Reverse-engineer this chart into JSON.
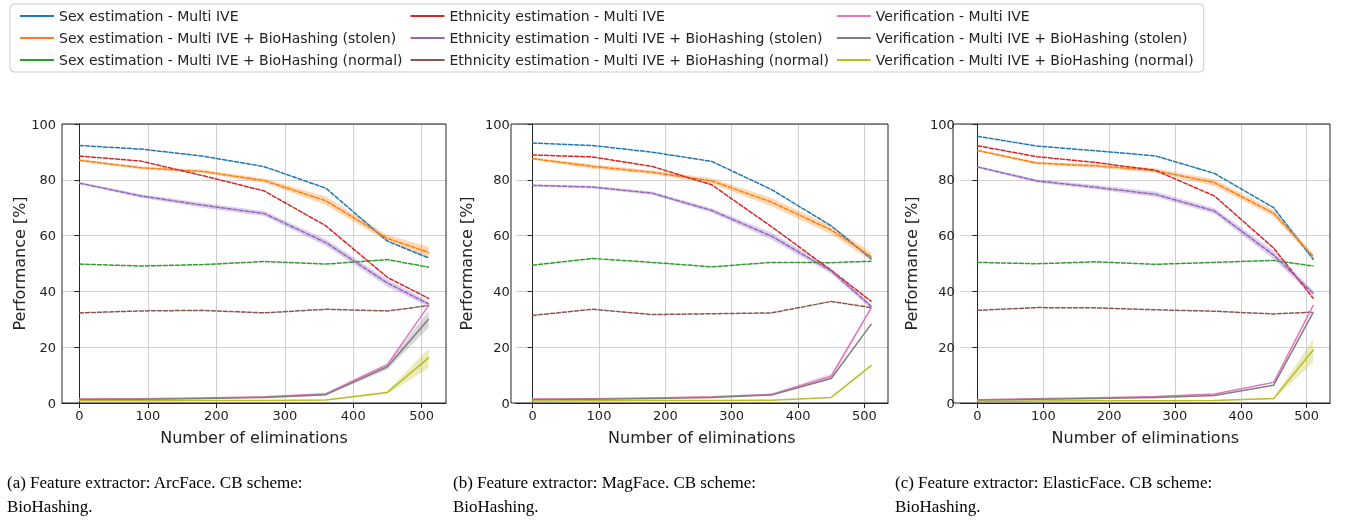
{
  "chart_data": [
    {
      "type": "line",
      "xlabel": "Number of eliminations",
      "ylabel": "Performance [%]",
      "annotations": [
        "(a) Feature extractor: ArcFace. CB scheme: BioHashing."
      ],
      "x": [
        0,
        90,
        180,
        270,
        360,
        450,
        510
      ],
      "xlim": [
        -25.5,
        535.5
      ],
      "xticks": [
        0,
        100,
        200,
        300,
        400,
        500
      ],
      "ylim": [
        0,
        100
      ],
      "yticks": [
        0,
        20,
        40,
        60,
        80,
        100
      ],
      "grid": true,
      "legend": "top",
      "series": [
        {
          "name": "Sex estimation - Multi IVE",
          "color": "#1f77b4",
          "line_style": "dashed",
          "values": [
            92.3,
            91,
            88.5,
            84.7,
            77,
            58,
            52
          ]
        },
        {
          "name": "Sex estimation - Multi IVE + BioHashing (stolen)",
          "color": "#ff7f0e",
          "line_style": "dashed",
          "values": [
            87,
            84.3,
            83,
            79.7,
            72.5,
            59,
            54
          ],
          "lower": [
            86.5,
            83.8,
            82.4,
            78.9,
            71,
            57.8,
            52
          ],
          "upper": [
            87.5,
            84.8,
            83.6,
            80.5,
            74,
            60.2,
            56
          ]
        },
        {
          "name": "Sex estimation - Multi IVE + BioHashing (normal)",
          "color": "#2ca02c",
          "line_style": "dashed",
          "values": [
            49.8,
            49.1,
            49.6,
            50.7,
            49.8,
            51.4,
            48.7
          ]
        },
        {
          "name": "Ethnicity estimation - Multi IVE",
          "color": "#d62728",
          "line_style": "dashed",
          "values": [
            88.5,
            86.7,
            81.5,
            76,
            63.5,
            45,
            37.5
          ]
        },
        {
          "name": "Ethnicity estimation - Multi IVE + BioHashing (stolen)",
          "color": "#9467bd",
          "line_style": "dashed",
          "values": [
            78.8,
            74.2,
            70.9,
            67.9,
            57.5,
            43,
            35.5
          ],
          "lower": [
            78.4,
            73.6,
            70,
            67,
            56.3,
            41.7,
            34.5
          ],
          "upper": [
            79.2,
            74.8,
            71.8,
            68.8,
            58.7,
            44.3,
            36.5
          ]
        },
        {
          "name": "Ethnicity estimation - Multi IVE + BioHashing (normal)",
          "color": "#8c564b",
          "line_style": "dashed",
          "values": [
            32.3,
            33,
            33.2,
            32.3,
            33.6,
            33,
            34.9
          ]
        },
        {
          "name": "Verification - Multi IVE",
          "color": "#e377c2",
          "line_style": "solid",
          "values": [
            1.5,
            1.5,
            1.8,
            2.2,
            3.3,
            13.8,
            34.9
          ]
        },
        {
          "name": "Verification - Multi IVE + BioHashing (stolen)",
          "color": "#7f7f7f",
          "line_style": "solid",
          "values": [
            1.2,
            1.3,
            1.6,
            2,
            3,
            13,
            30
          ],
          "lower": [
            1,
            1.1,
            1.4,
            1.8,
            2.7,
            12,
            27
          ],
          "upper": [
            1.4,
            1.5,
            1.8,
            2.2,
            3.3,
            14,
            33
          ]
        },
        {
          "name": "Verification - Multi IVE + BioHashing (normal)",
          "color": "#bcbd22",
          "line_style": "solid",
          "values": [
            0.8,
            0.8,
            0.9,
            0.9,
            1.1,
            3.8,
            16.2
          ],
          "lower": [
            0.7,
            0.7,
            0.8,
            0.8,
            1,
            3.3,
            12.5
          ],
          "upper": [
            0.9,
            0.9,
            1,
            1,
            1.2,
            4.3,
            19.5
          ]
        }
      ]
    },
    {
      "type": "line",
      "xlabel": "Number of eliminations",
      "ylabel": "Performance [%]",
      "annotations": [
        "(b) Feature extractor: MagFace. CB scheme: BioHashing."
      ],
      "x": [
        0,
        90,
        180,
        270,
        360,
        450,
        510
      ],
      "xlim": [
        -25.5,
        535.5
      ],
      "xticks": [
        0,
        100,
        200,
        300,
        400,
        500
      ],
      "ylim": [
        0,
        100
      ],
      "yticks": [
        0,
        20,
        40,
        60,
        80,
        100
      ],
      "grid": true,
      "series": [
        {
          "color": "#1f77b4",
          "line_style": "dashed",
          "values": [
            93.2,
            92.3,
            89.9,
            86.6,
            76.5,
            63.5,
            51.7
          ]
        },
        {
          "color": "#ff7f0e",
          "line_style": "dashed",
          "values": [
            87.6,
            84.8,
            82.7,
            79.6,
            72,
            62,
            52.5
          ],
          "lower": [
            87.2,
            84,
            82,
            78.6,
            70.5,
            60.5,
            51
          ],
          "upper": [
            88,
            85.6,
            83.4,
            80.6,
            73.5,
            63.5,
            54
          ]
        },
        {
          "color": "#2ca02c",
          "line_style": "dashed",
          "values": [
            49.4,
            51.8,
            50.4,
            48.8,
            50.4,
            50.3,
            50.8
          ]
        },
        {
          "color": "#d62728",
          "line_style": "dashed",
          "values": [
            88.9,
            88.2,
            84.8,
            78.2,
            63.2,
            47.5,
            36.5
          ]
        },
        {
          "color": "#9467bd",
          "line_style": "dashed",
          "values": [
            78,
            77.4,
            75.2,
            69,
            59.8,
            47.3,
            34.7
          ],
          "lower": [
            77.6,
            76.9,
            74.6,
            68.2,
            58.5,
            46.3,
            33.8
          ],
          "upper": [
            78.4,
            77.9,
            75.8,
            69.8,
            61.1,
            48.3,
            35.6
          ]
        },
        {
          "color": "#8c564b",
          "line_style": "dashed",
          "values": [
            31.4,
            33.6,
            31.7,
            32,
            32.3,
            36.4,
            34.2
          ]
        },
        {
          "color": "#e377c2",
          "line_style": "solid",
          "values": [
            1.4,
            1.5,
            1.8,
            2.2,
            3.1,
            9.6,
            34
          ],
          "lower": [
            1.2,
            1.3,
            1.6,
            2,
            2.8,
            8.6,
            33.5
          ],
          "upper": [
            1.6,
            1.7,
            2,
            2.4,
            3.4,
            10.6,
            34.5
          ]
        },
        {
          "color": "#7f7f7f",
          "line_style": "solid",
          "values": [
            1.2,
            1.3,
            1.6,
            2,
            2.9,
            8.8,
            28.2
          ]
        },
        {
          "color": "#bcbd22",
          "line_style": "solid",
          "values": [
            0.7,
            0.8,
            0.9,
            0.9,
            1,
            2,
            13.4
          ]
        }
      ]
    },
    {
      "type": "line",
      "xlabel": "Number of eliminations",
      "ylabel": "Performance [%]",
      "annotations": [
        "(c) Feature extractor: ElasticFace. CB scheme: BioHashing."
      ],
      "x": [
        0,
        90,
        180,
        270,
        360,
        450,
        510
      ],
      "xlim": [
        -25.5,
        535.5
      ],
      "xticks": [
        0,
        100,
        200,
        300,
        400,
        500
      ],
      "ylim": [
        0,
        100
      ],
      "yticks": [
        0,
        20,
        40,
        60,
        80,
        100
      ],
      "grid": true,
      "series": [
        {
          "color": "#1f77b4",
          "line_style": "dashed",
          "values": [
            95.6,
            92.1,
            90.4,
            88.6,
            82.3,
            70,
            51.5
          ]
        },
        {
          "color": "#ff7f0e",
          "line_style": "dashed",
          "values": [
            90.5,
            86,
            85,
            83.3,
            79,
            68,
            52.5
          ],
          "lower": [
            90.1,
            85.5,
            84.3,
            82.5,
            77.8,
            66.8,
            51.5
          ],
          "upper": [
            90.9,
            86.5,
            85.7,
            84.1,
            80.2,
            69.2,
            53.5
          ]
        },
        {
          "color": "#2ca02c",
          "line_style": "dashed",
          "values": [
            50.4,
            49.9,
            50.6,
            49.7,
            50.4,
            51.1,
            49.1
          ]
        },
        {
          "color": "#d62728",
          "line_style": "dashed",
          "values": [
            92.2,
            88.3,
            86.2,
            83.4,
            74.2,
            55.5,
            37.5
          ]
        },
        {
          "color": "#9467bd",
          "line_style": "dashed",
          "values": [
            84.6,
            79.6,
            77.3,
            74.8,
            68.8,
            53,
            39.3
          ],
          "lower": [
            84.2,
            79,
            76.5,
            73.8,
            67.8,
            51.5,
            38.3
          ],
          "upper": [
            85,
            80.2,
            78.1,
            75.8,
            69.8,
            54.5,
            40.3
          ]
        },
        {
          "color": "#8c564b",
          "line_style": "dashed",
          "values": [
            33.2,
            34.2,
            34.1,
            33.4,
            32.9,
            31.9,
            32.6
          ]
        },
        {
          "color": "#e377c2",
          "line_style": "solid",
          "values": [
            1.2,
            1.5,
            1.9,
            2.3,
            3.2,
            7.4,
            35
          ]
        },
        {
          "color": "#7f7f7f",
          "line_style": "solid",
          "values": [
            1,
            1.3,
            1.6,
            2,
            2.7,
            6.4,
            32.5
          ]
        },
        {
          "color": "#bcbd22",
          "line_style": "solid",
          "values": [
            0.6,
            0.7,
            0.8,
            0.8,
            0.9,
            1.6,
            19
          ],
          "lower": [
            0.5,
            0.6,
            0.7,
            0.7,
            0.8,
            1.4,
            14.5
          ],
          "upper": [
            0.7,
            0.8,
            0.9,
            0.9,
            1,
            1.8,
            23
          ]
        }
      ]
    }
  ]
}
